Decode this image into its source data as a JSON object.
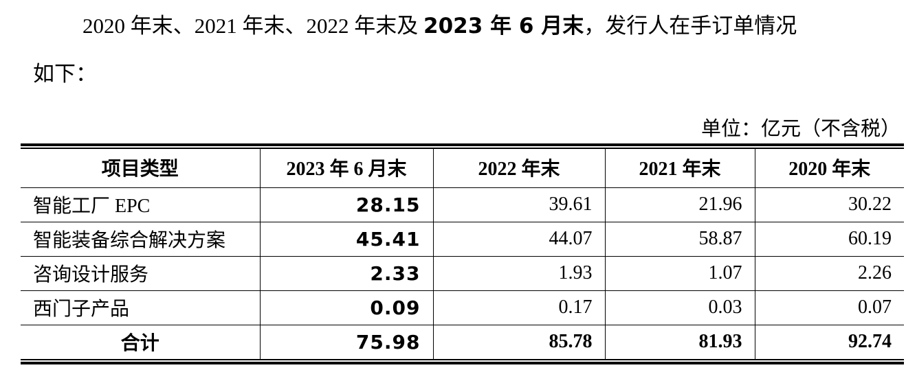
{
  "paragraph": {
    "parts": [
      "2020 年末、2021 年末、2022 年末及 ",
      "2023 年 6 月末",
      "，发行人在手订单情况",
      "如下："
    ]
  },
  "unit": "单位：亿元（不含税）",
  "table": {
    "header": [
      "项目类型",
      "2023 年 6 月末",
      "2022 年末",
      "2021 年末",
      "2020 年末"
    ],
    "rows": [
      [
        "智能工厂 EPC",
        "28.15",
        "39.61",
        "21.96",
        "30.22"
      ],
      [
        "智能装备综合解决方案",
        "45.41",
        "44.07",
        "58.87",
        "60.19"
      ],
      [
        "咨询设计服务",
        "2.33",
        "1.93",
        "1.07",
        "2.26"
      ],
      [
        "西门子产品",
        "0.09",
        "0.17",
        "0.03",
        "0.07"
      ],
      [
        "合计",
        "75.98",
        "85.78",
        "81.93",
        "92.74"
      ]
    ]
  }
}
